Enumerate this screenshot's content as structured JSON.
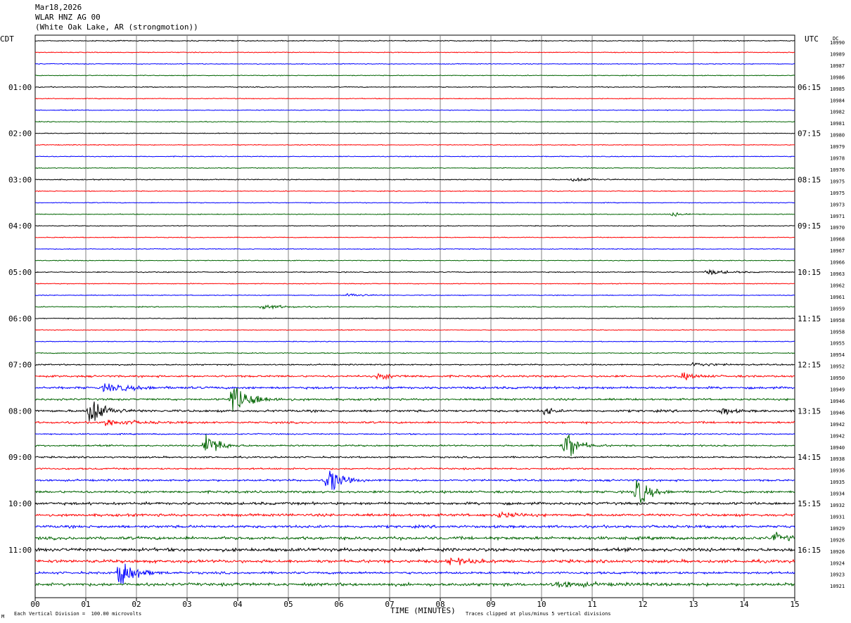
{
  "header": {
    "date": "Mar18,2026",
    "station": "WLAR HNZ AG 00",
    "location": "(White Oak Lake, AR (strongmotion))"
  },
  "left_tz": "CDT",
  "right_tz": "UTC",
  "dc_label": "DC",
  "footer": {
    "xlabel": "TIME (MINUTES)",
    "scale_note": "Each Vertical Division =  100.00 microvolts",
    "clip_note": "Traces clipped at plus/minus 5 vertical divisions",
    "corner_mark": "M"
  },
  "colors": {
    "cycle": [
      "#000000",
      "#ff0000",
      "#0000ff",
      "#006400"
    ],
    "grid": "#808080"
  },
  "chart_data": {
    "type": "line",
    "title": "WLAR HNZ AG 00",
    "xlabel": "TIME (MINUTES)",
    "xlim": [
      0,
      15
    ],
    "x_ticks": [
      "00",
      "01",
      "02",
      "03",
      "04",
      "05",
      "06",
      "07",
      "08",
      "09",
      "10",
      "11",
      "12",
      "13",
      "14",
      "15"
    ],
    "traces_per_hour": 4,
    "trace_count": 48,
    "left_hour_labels": [
      "01:00",
      "02:00",
      "03:00",
      "04:00",
      "05:00",
      "06:00",
      "07:00",
      "08:00",
      "09:00",
      "10:00",
      "11:00"
    ],
    "right_hour_labels": [
      "06:15",
      "07:15",
      "08:15",
      "09:15",
      "10:15",
      "11:15",
      "12:15",
      "13:15",
      "14:15",
      "15:15",
      "16:15"
    ],
    "dc_values": [
      "10990",
      "10989",
      "10987",
      "10986",
      "10985",
      "10984",
      "10982",
      "10981",
      "10980",
      "10979",
      "10978",
      "10976",
      "10975",
      "10975",
      "10973",
      "10971",
      "10970",
      "10968",
      "10967",
      "10966",
      "10963",
      "10962",
      "10961",
      "10959",
      "10958",
      "10958",
      "10955",
      "10954",
      "10952",
      "10950",
      "10949",
      "10946",
      "10946",
      "10942",
      "10942",
      "10940",
      "10938",
      "10936",
      "10935",
      "10934",
      "10932",
      "10931",
      "10929",
      "10926",
      "10926",
      "10924",
      "10923",
      "10921"
    ],
    "noise_level": [
      0.3,
      0.25,
      0.25,
      0.25,
      0.3,
      0.25,
      0.25,
      0.25,
      0.25,
      0.25,
      0.25,
      0.25,
      0.3,
      0.25,
      0.25,
      0.25,
      0.25,
      0.25,
      0.25,
      0.25,
      0.3,
      0.25,
      0.25,
      0.3,
      0.25,
      0.25,
      0.25,
      0.3,
      0.4,
      0.6,
      0.7,
      0.6,
      0.7,
      0.6,
      0.4,
      0.5,
      0.5,
      0.5,
      0.6,
      0.7,
      0.8,
      0.8,
      0.8,
      0.9,
      1.0,
      0.9,
      0.7,
      0.9
    ],
    "events": [
      {
        "trace": 15,
        "minute": 12.6,
        "amplitude": 0.5,
        "duration": 0.5
      },
      {
        "trace": 12,
        "minute": 10.6,
        "amplitude": 0.6,
        "duration": 0.8
      },
      {
        "trace": 20,
        "minute": 13.3,
        "amplitude": 0.7,
        "duration": 0.8
      },
      {
        "trace": 22,
        "minute": 6.2,
        "amplitude": 0.6,
        "duration": 0.6
      },
      {
        "trace": 23,
        "minute": 4.5,
        "amplitude": 0.7,
        "duration": 0.8
      },
      {
        "trace": 28,
        "minute": 13.0,
        "amplitude": 0.6,
        "duration": 0.8
      },
      {
        "trace": 29,
        "minute": 6.8,
        "amplitude": 0.8,
        "duration": 0.6
      },
      {
        "trace": 29,
        "minute": 12.8,
        "amplitude": 0.8,
        "duration": 0.6
      },
      {
        "trace": 30,
        "minute": 1.4,
        "amplitude": 1.2,
        "duration": 1.0
      },
      {
        "trace": 31,
        "minute": 3.9,
        "amplitude": 5.0,
        "duration": 0.7
      },
      {
        "trace": 32,
        "minute": 1.1,
        "amplitude": 5.0,
        "duration": 0.5
      },
      {
        "trace": 32,
        "minute": 10.1,
        "amplitude": 1.5,
        "duration": 0.2
      },
      {
        "trace": 32,
        "minute": 13.6,
        "amplitude": 1.3,
        "duration": 0.3
      },
      {
        "trace": 33,
        "minute": 1.4,
        "amplitude": 1.0,
        "duration": 1.0
      },
      {
        "trace": 35,
        "minute": 3.4,
        "amplitude": 5.0,
        "duration": 0.4
      },
      {
        "trace": 35,
        "minute": 10.5,
        "amplitude": 5.0,
        "duration": 0.4
      },
      {
        "trace": 38,
        "minute": 5.8,
        "amplitude": 5.0,
        "duration": 0.4
      },
      {
        "trace": 39,
        "minute": 11.9,
        "amplitude": 5.0,
        "duration": 0.4
      },
      {
        "trace": 41,
        "minute": 9.2,
        "amplitude": 0.8,
        "duration": 0.6
      },
      {
        "trace": 43,
        "minute": 14.6,
        "amplitude": 1.2,
        "duration": 0.6
      },
      {
        "trace": 45,
        "minute": 8.2,
        "amplitude": 0.9,
        "duration": 0.8
      },
      {
        "trace": 46,
        "minute": 1.7,
        "amplitude": 5.0,
        "duration": 0.5
      },
      {
        "trace": 47,
        "minute": 10.3,
        "amplitude": 0.8,
        "duration": 1.2
      }
    ]
  }
}
